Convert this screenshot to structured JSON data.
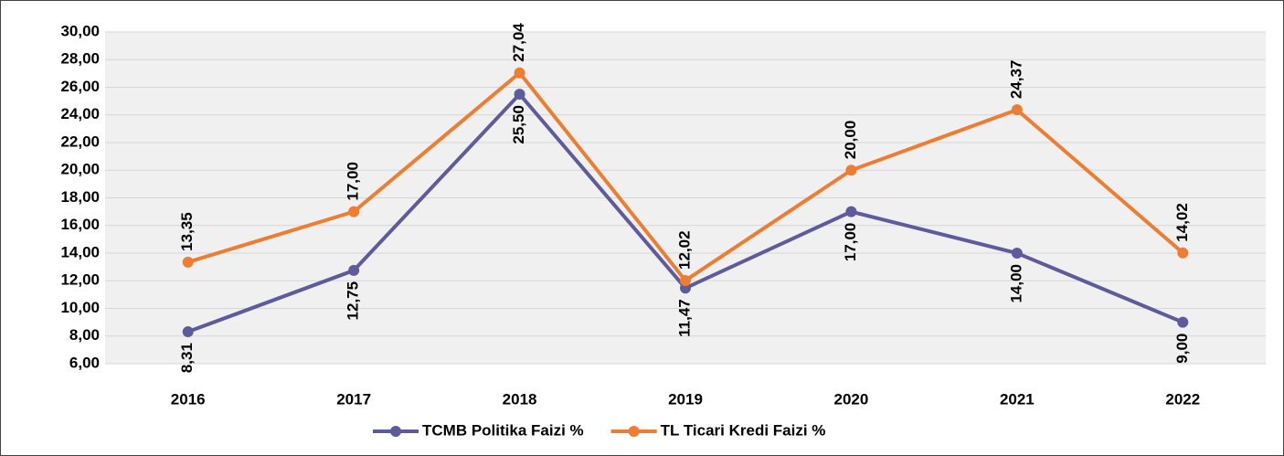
{
  "chart_data": {
    "type": "line",
    "categories": [
      "2016",
      "2017",
      "2018",
      "2019",
      "2020",
      "2021",
      "2022"
    ],
    "series": [
      {
        "name": "TCMB Politika Faizi %",
        "color": "#5e5b9c",
        "values": [
          8.31,
          12.75,
          25.5,
          11.47,
          17,
          14,
          9
        ],
        "value_labels": [
          "8,31",
          "12,75",
          "25,50",
          "11,47",
          "17,00",
          "14,00",
          "9,00"
        ]
      },
      {
        "name": "TL Ticari Kredi Faizi %",
        "color": "#ed7d31",
        "values": [
          13.35,
          17,
          27.04,
          12.02,
          20,
          24.37,
          14.02
        ],
        "value_labels": [
          "13,35",
          "17,00",
          "27,04",
          "12,02",
          "20,00",
          "24,37",
          "14,02"
        ]
      }
    ],
    "ylim": [
      6,
      30
    ],
    "yticks": [
      {
        "value": 6,
        "label": "6,00"
      },
      {
        "value": 8,
        "label": "8,00"
      },
      {
        "value": 10,
        "label": "10,00"
      },
      {
        "value": 12,
        "label": "12,00"
      },
      {
        "value": 14,
        "label": "14,00"
      },
      {
        "value": 16,
        "label": "16,00"
      },
      {
        "value": 18,
        "label": "18,00"
      },
      {
        "value": 20,
        "label": "20,00"
      },
      {
        "value": 22,
        "label": "22,00"
      },
      {
        "value": 24,
        "label": "24,00"
      },
      {
        "value": 26,
        "label": "26,00"
      },
      {
        "value": 28,
        "label": "28,00"
      },
      {
        "value": 30,
        "label": "30,00"
      }
    ],
    "grid": true,
    "legend": "bottom"
  }
}
